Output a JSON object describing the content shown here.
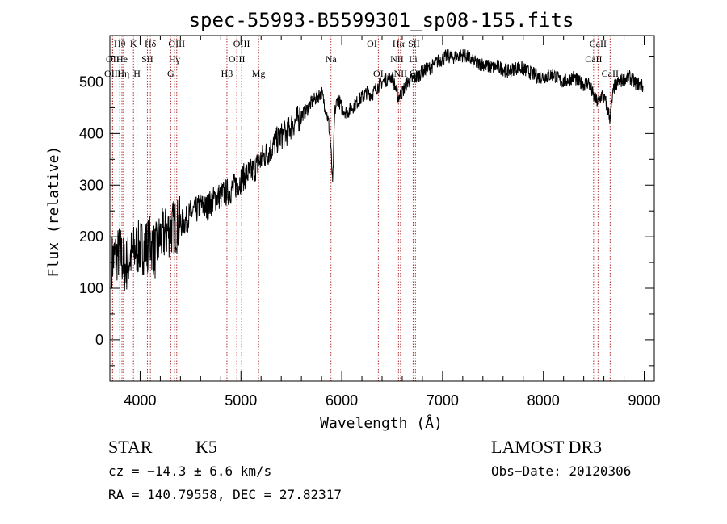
{
  "chart_data": {
    "type": "line",
    "title": "spec-55993-B5599301_sp08-155.fits",
    "xlabel": "Wavelength (Å)",
    "ylabel": "Flux (relative)",
    "xlim": [
      3700,
      9100
    ],
    "ylim": [
      -80,
      590
    ],
    "xticks": [
      4000,
      5000,
      6000,
      7000,
      8000,
      9000
    ],
    "yticks": [
      0,
      100,
      200,
      300,
      400,
      500
    ],
    "series": [
      {
        "name": "flux",
        "x": [
          3700,
          3750,
          3800,
          3850,
          3900,
          3950,
          4000,
          4050,
          4100,
          4150,
          4200,
          4250,
          4300,
          4350,
          4400,
          4450,
          4500,
          4550,
          4600,
          4650,
          4700,
          4750,
          4800,
          4850,
          4900,
          4950,
          5000,
          5050,
          5100,
          5150,
          5200,
          5250,
          5300,
          5350,
          5400,
          5450,
          5500,
          5550,
          5600,
          5650,
          5700,
          5750,
          5800,
          5850,
          5870,
          5890,
          5910,
          5930,
          5960,
          6000,
          6050,
          6100,
          6150,
          6200,
          6250,
          6300,
          6350,
          6400,
          6450,
          6500,
          6560,
          6600,
          6650,
          6700,
          6750,
          6800,
          6850,
          6900,
          6950,
          7000,
          7050,
          7100,
          7150,
          7200,
          7250,
          7300,
          7350,
          7400,
          7450,
          7500,
          7550,
          7600,
          7650,
          7700,
          7750,
          7800,
          7850,
          7900,
          7950,
          8000,
          8050,
          8100,
          8150,
          8200,
          8250,
          8300,
          8350,
          8400,
          8450,
          8500,
          8540,
          8580,
          8620,
          8660,
          8700,
          8750,
          8800,
          8850,
          8900,
          8950,
          9000
        ],
        "y": [
          150,
          160,
          170,
          140,
          160,
          175,
          180,
          180,
          190,
          170,
          200,
          205,
          215,
          220,
          225,
          230,
          245,
          250,
          260,
          255,
          265,
          275,
          280,
          285,
          290,
          300,
          310,
          320,
          325,
          335,
          350,
          360,
          370,
          385,
          395,
          400,
          415,
          425,
          435,
          445,
          460,
          470,
          480,
          440,
          420,
          380,
          300,
          440,
          470,
          450,
          440,
          450,
          460,
          470,
          480,
          475,
          490,
          500,
          505,
          510,
          470,
          480,
          500,
          505,
          510,
          520,
          525,
          530,
          540,
          545,
          550,
          548,
          550,
          552,
          548,
          540,
          535,
          535,
          530,
          528,
          530,
          525,
          520,
          525,
          528,
          525,
          520,
          515,
          510,
          510,
          512,
          515,
          505,
          500,
          505,
          510,
          500,
          495,
          500,
          470,
          460,
          475,
          460,
          430,
          490,
          500,
          505,
          510,
          500,
          495,
          490
        ]
      }
    ],
    "lines": [
      {
        "name": "OII",
        "wave": 3727,
        "row": 2
      },
      {
        "name": "Hθ",
        "wave": 3798,
        "row": 1
      },
      {
        "name": "OIII",
        "wave": 3727,
        "row": 3
      },
      {
        "name": "He",
        "wave": 3820,
        "row": 2
      },
      {
        "name": "K",
        "wave": 3934,
        "row": 1
      },
      {
        "name": "H",
        "wave": 3969,
        "row": 3
      },
      {
        "name": "Hη",
        "wave": 3835,
        "row": 3
      },
      {
        "name": "SII",
        "wave": 4072,
        "row": 2
      },
      {
        "name": "Hδ",
        "wave": 4102,
        "row": 1
      },
      {
        "name": "OIII",
        "wave": 4363,
        "row": 1
      },
      {
        "name": "Hγ",
        "wave": 4340,
        "row": 2
      },
      {
        "name": "G",
        "wave": 4304,
        "row": 3
      },
      {
        "name": "Hβ",
        "wave": 4861,
        "row": 3
      },
      {
        "name": "OIII",
        "wave": 5007,
        "row": 1
      },
      {
        "name": "OIII",
        "wave": 4959,
        "row": 2
      },
      {
        "name": "Mg",
        "wave": 5175,
        "row": 3
      },
      {
        "name": "Na",
        "wave": 5893,
        "row": 2
      },
      {
        "name": "OI",
        "wave": 6300,
        "row": 1
      },
      {
        "name": "OI",
        "wave": 6363,
        "row": 3
      },
      {
        "name": "Hα",
        "wave": 6563,
        "row": 1
      },
      {
        "name": "NII",
        "wave": 6548,
        "row": 2
      },
      {
        "name": "NII",
        "wave": 6583,
        "row": 3
      },
      {
        "name": "SII",
        "wave": 6716,
        "row": 1
      },
      {
        "name": "Li",
        "wave": 6708,
        "row": 2
      },
      {
        "name": "SII",
        "wave": 6731,
        "row": 3
      },
      {
        "name": "CaII",
        "wave": 8542,
        "row": 1
      },
      {
        "name": "CaII",
        "wave": 8498,
        "row": 2
      },
      {
        "name": "CaII",
        "wave": 8662,
        "row": 3
      }
    ]
  },
  "info": {
    "class": "STAR",
    "subclass": "K5",
    "survey": "LAMOST DR3",
    "cz": "cz = −14.3 ± 6.6 km/s",
    "obs_date": "Obs−Date: 20120306",
    "radec": "RA = 140.79558, DEC =  27.82317"
  }
}
